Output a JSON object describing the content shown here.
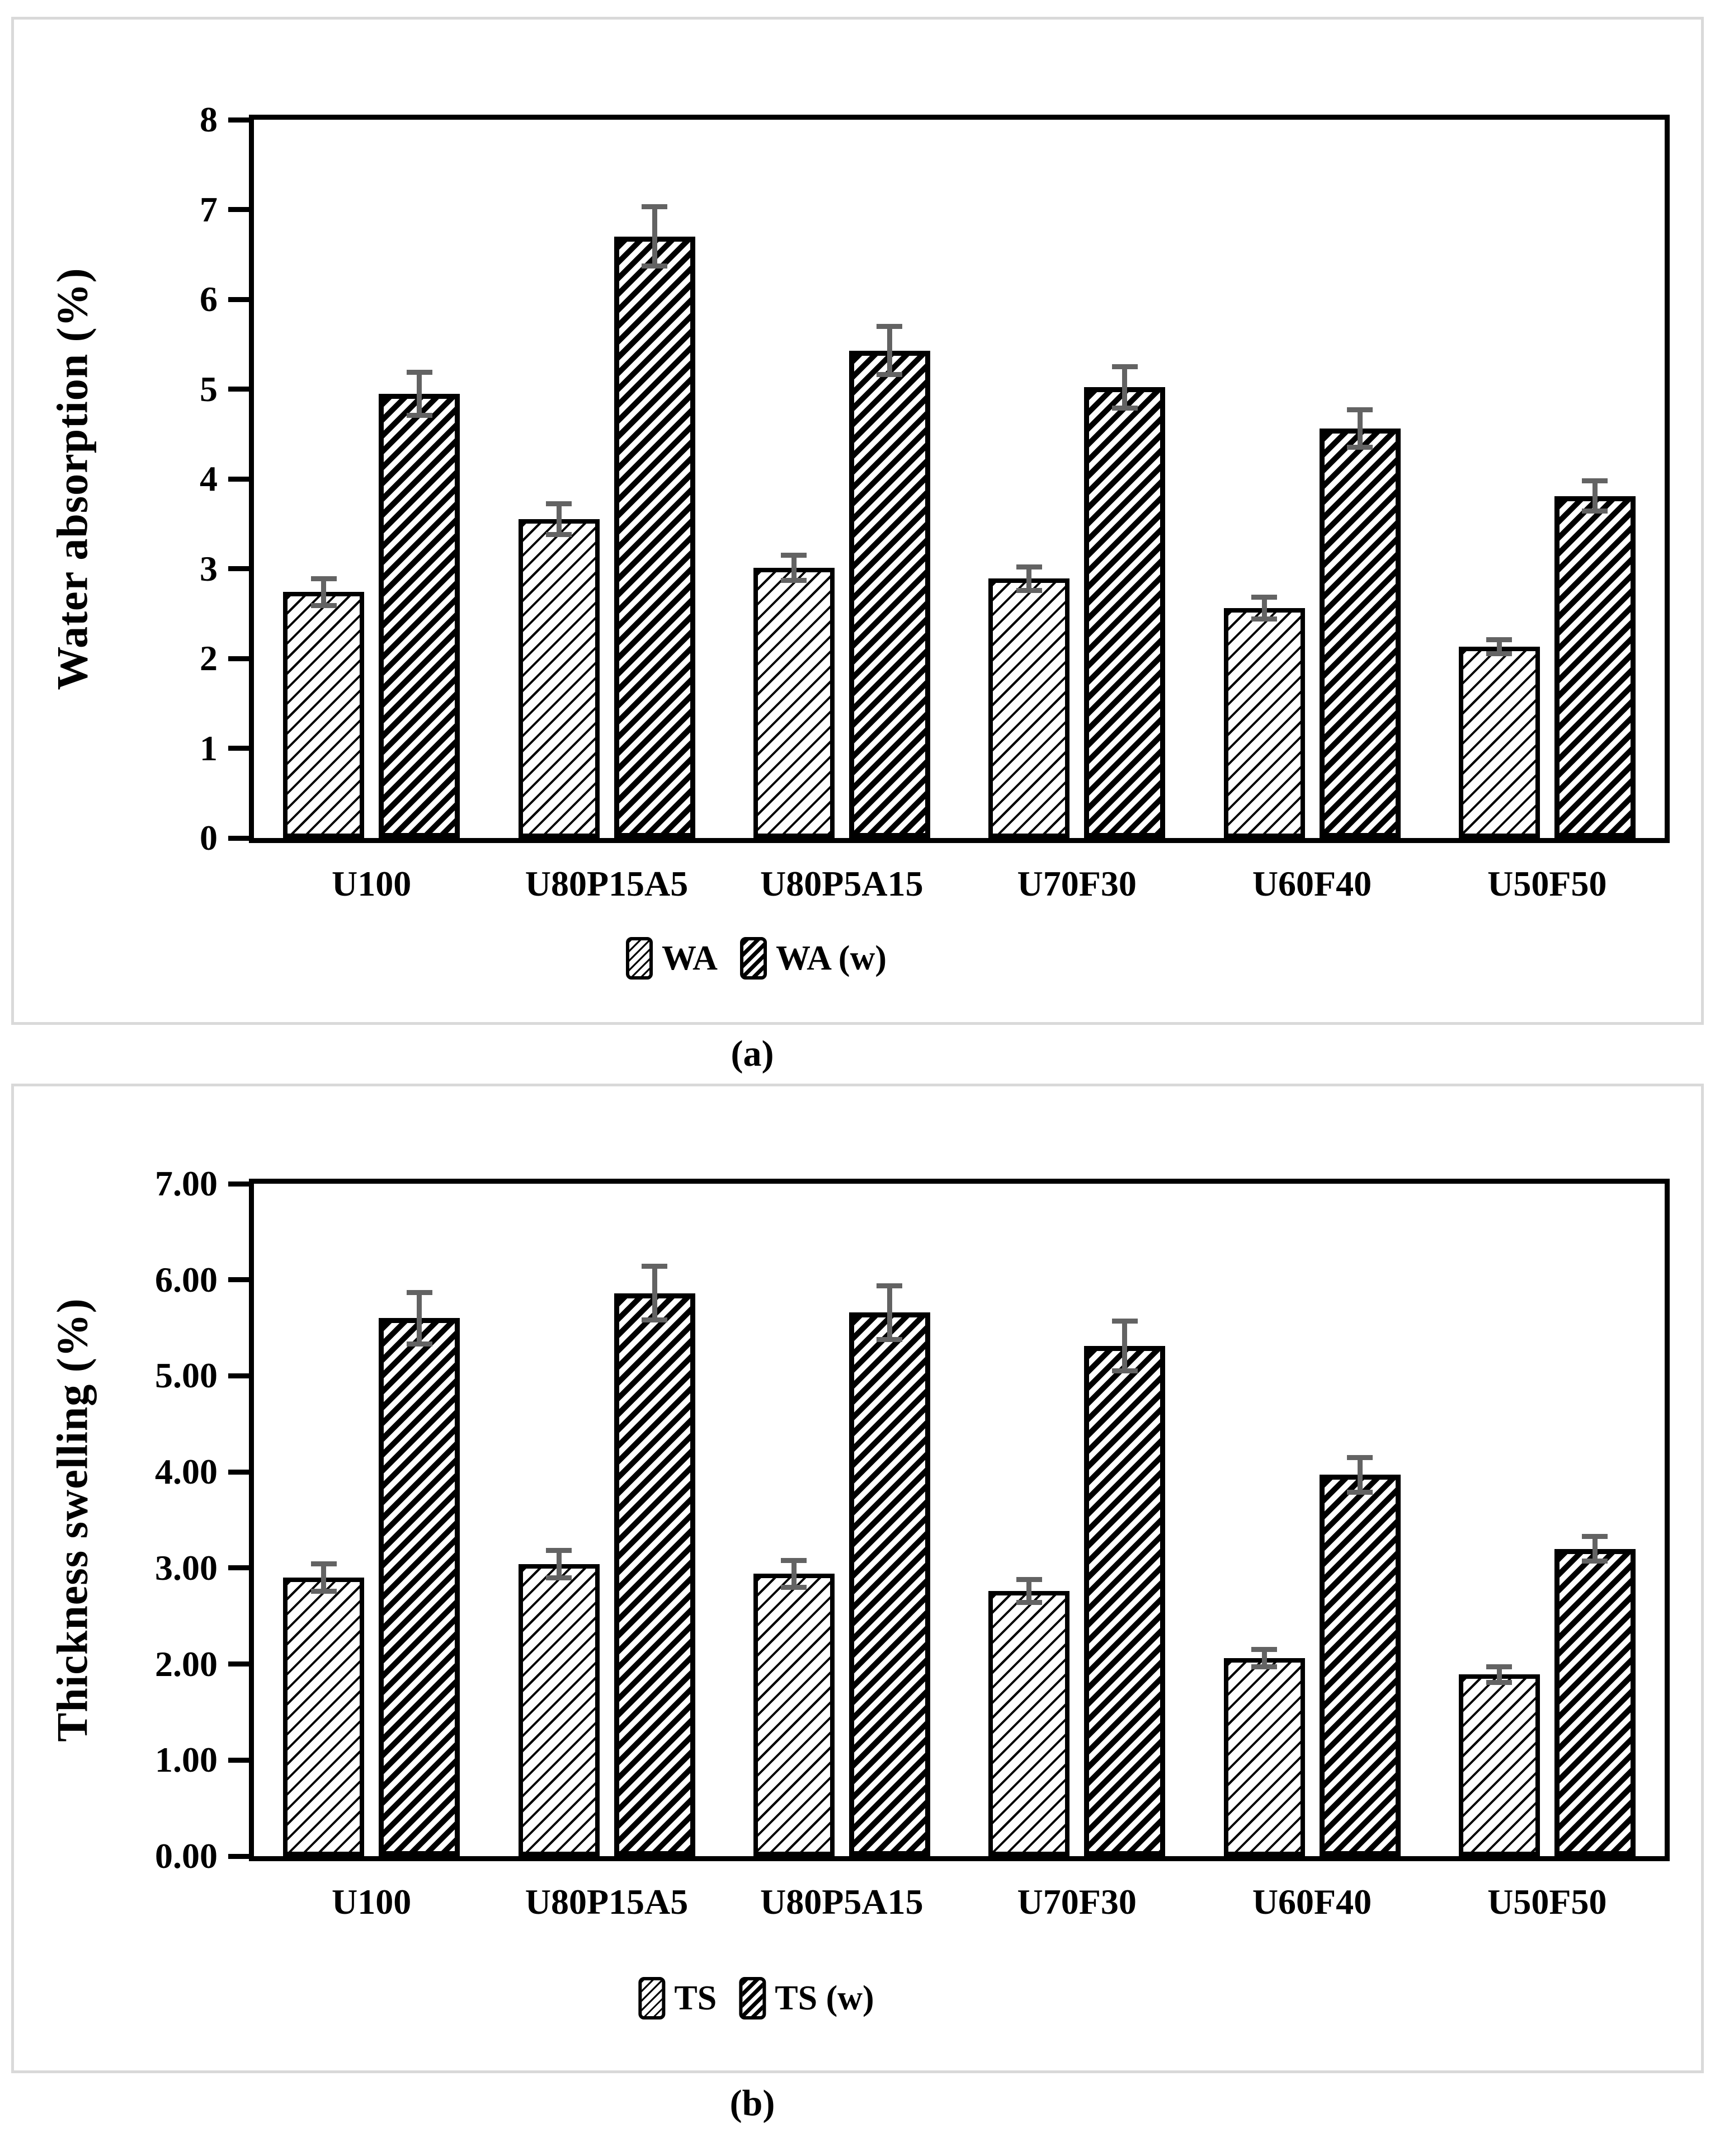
{
  "figure": {
    "captions": [
      "(a)",
      "(b)"
    ],
    "colors": {
      "ink": "#000000",
      "background": "#ffffff",
      "panel_border": "#d9d9d9",
      "error_bar": "#636363"
    }
  },
  "chart_data": [
    {
      "type": "bar",
      "panel": "a",
      "title": "",
      "xlabel": "",
      "ylabel": "Water absorption (%)",
      "ylim": [
        0,
        8
      ],
      "ytick_step": 1,
      "ytick_labels": [
        "0",
        "1",
        "2",
        "3",
        "4",
        "5",
        "6",
        "7",
        "8"
      ],
      "grid": false,
      "legend_position": "bottom",
      "legend": [
        "WA",
        "WA (w)"
      ],
      "categories": [
        "U100",
        "U80P15A5",
        "U80P5A15",
        "U70F30",
        "U60F40",
        "U50F50"
      ],
      "series": [
        {
          "name": "WA",
          "hatch": "fine-diagonal",
          "values": [
            2.74,
            3.55,
            3.01,
            2.89,
            2.56,
            2.13
          ],
          "errors": [
            0.15,
            0.17,
            0.14,
            0.13,
            0.12,
            0.08
          ]
        },
        {
          "name": "WA (w)",
          "hatch": "bold-diagonal",
          "values": [
            4.95,
            6.7,
            5.43,
            5.02,
            4.56,
            3.81
          ],
          "errors": [
            0.24,
            0.33,
            0.27,
            0.23,
            0.21,
            0.17
          ]
        }
      ]
    },
    {
      "type": "bar",
      "panel": "b",
      "title": "",
      "xlabel": "",
      "ylabel": "Thickness swelling (%)",
      "ylim": [
        0,
        7
      ],
      "ytick_step": 1,
      "ytick_labels": [
        "0.00",
        "1.00",
        "2.00",
        "3.00",
        "4.00",
        "5.00",
        "6.00",
        "7.00"
      ],
      "grid": false,
      "legend_position": "bottom",
      "legend": [
        "TS",
        "TS (w)"
      ],
      "categories": [
        "U100",
        "U80P15A5",
        "U80P5A15",
        "U70F30",
        "U60F40",
        "U50F50"
      ],
      "series": [
        {
          "name": "TS",
          "hatch": "fine-diagonal",
          "values": [
            2.9,
            3.04,
            2.94,
            2.76,
            2.06,
            1.89
          ],
          "errors": [
            0.14,
            0.14,
            0.14,
            0.12,
            0.09,
            0.08
          ]
        },
        {
          "name": "TS (w)",
          "hatch": "bold-diagonal",
          "values": [
            5.6,
            5.86,
            5.66,
            5.31,
            3.97,
            3.2
          ],
          "errors": [
            0.27,
            0.28,
            0.28,
            0.26,
            0.18,
            0.13
          ]
        }
      ]
    }
  ]
}
